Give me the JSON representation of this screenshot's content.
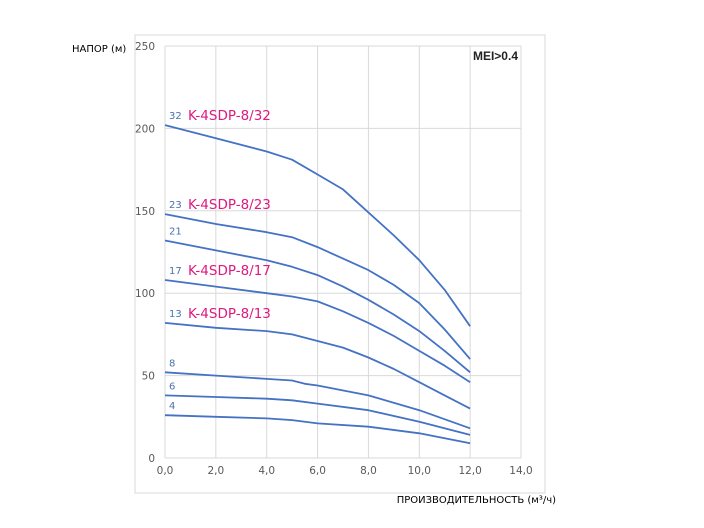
{
  "chart_data": {
    "type": "line",
    "title": "",
    "xlabel": "ПРОИЗВОДИТЕЛЬНОСТЬ (м³/ч)",
    "ylabel": "НАПОР (м)",
    "xlim": [
      0,
      14
    ],
    "ylim": [
      0,
      250
    ],
    "xticks": [
      "0,0",
      "2,0",
      "4,0",
      "6,0",
      "8,0",
      "10,0",
      "12,0",
      "14,0"
    ],
    "yticks": [
      "0",
      "50",
      "100",
      "150",
      "200",
      "250"
    ],
    "grid": true,
    "annotation": "MEI>0.4",
    "line_color": "#4472c4",
    "model_color": "#e0197d",
    "series": [
      {
        "name": "32",
        "model": "K-4SDP-8/32",
        "x": [
          0,
          2,
          4,
          5,
          6,
          7,
          8,
          9,
          10,
          11,
          12
        ],
        "y": [
          202,
          194,
          186,
          181,
          172,
          163,
          149,
          135,
          120,
          102,
          80
        ]
      },
      {
        "name": "23",
        "model": "K-4SDP-8/23",
        "x": [
          0,
          2,
          4,
          5,
          6,
          7,
          8,
          9,
          10,
          11,
          12
        ],
        "y": [
          148,
          142,
          137,
          134,
          128,
          121,
          114,
          105,
          94,
          78,
          60
        ]
      },
      {
        "name": "21",
        "model": "",
        "x": [
          0,
          2,
          4,
          5,
          6,
          7,
          8,
          9,
          10,
          11,
          12
        ],
        "y": [
          132,
          126,
          120,
          116,
          111,
          104,
          96,
          87,
          77,
          65,
          52
        ]
      },
      {
        "name": "17",
        "model": "K-4SDP-8/17",
        "x": [
          0,
          2,
          4,
          5,
          6,
          7,
          8,
          9,
          10,
          11,
          12
        ],
        "y": [
          108,
          104,
          100,
          98,
          95,
          89,
          82,
          74,
          65,
          56,
          46
        ]
      },
      {
        "name": "13",
        "model": "K-4SDP-8/13",
        "x": [
          0,
          2,
          4,
          5,
          6,
          7,
          8,
          9,
          10,
          11,
          12
        ],
        "y": [
          82,
          79,
          77,
          75,
          71,
          67,
          61,
          54,
          46,
          38,
          30
        ]
      },
      {
        "name": "8",
        "model": "",
        "x": [
          0,
          2,
          4,
          5,
          5.5,
          6,
          8,
          10,
          12
        ],
        "y": [
          52,
          50,
          48,
          47,
          45,
          44,
          38,
          29,
          18
        ]
      },
      {
        "name": "6",
        "model": "",
        "x": [
          0,
          2,
          4,
          5,
          6,
          8,
          10,
          12
        ],
        "y": [
          38,
          37,
          36,
          35,
          33,
          29,
          22,
          14
        ]
      },
      {
        "name": "4",
        "model": "",
        "x": [
          0,
          2,
          4,
          5,
          6,
          8,
          10,
          12
        ],
        "y": [
          26,
          25,
          24,
          23,
          21,
          19,
          15,
          9
        ]
      }
    ]
  }
}
